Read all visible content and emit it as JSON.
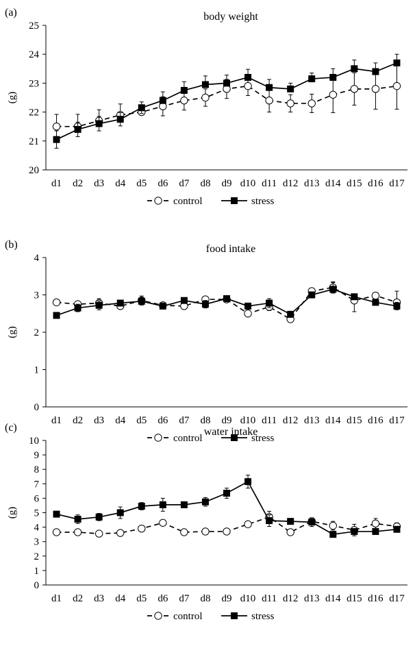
{
  "chart_data": [
    {
      "panel_label": "(a)",
      "type": "line",
      "title": "body weight",
      "ylabel": "(g)",
      "ylim": [
        20,
        25
      ],
      "yticks": [
        20,
        21,
        22,
        23,
        24,
        25
      ],
      "categories": [
        "d1",
        "d2",
        "d3",
        "d4",
        "d5",
        "d6",
        "d7",
        "d8",
        "d9",
        "d10",
        "d11",
        "d12",
        "d13",
        "d14",
        "d15",
        "d16",
        "d17"
      ],
      "legend": {
        "placement": "bottom-center",
        "entries": [
          "control",
          "stress"
        ]
      },
      "series": [
        {
          "name": "control",
          "marker": "open-circle",
          "line": "dashed",
          "values": [
            21.5,
            21.5,
            21.7,
            21.9,
            22.0,
            22.2,
            22.4,
            22.5,
            22.8,
            22.9,
            22.4,
            22.3,
            22.3,
            22.6,
            22.8,
            22.8,
            22.9
          ],
          "error_up": [
            0.42,
            0.42,
            0.38,
            0.38,
            0.12,
            0.33,
            0.33,
            0.3,
            0.33,
            0.38,
            0.4,
            0.3,
            0.32,
            0.62,
            0.56,
            0.7,
            0.8
          ],
          "error_down": [
            0,
            0,
            0,
            0,
            0.1,
            0.33,
            0.33,
            0.3,
            0.33,
            0.33,
            0.4,
            0.3,
            0.32,
            0.62,
            0.56,
            0.7,
            0.8
          ]
        },
        {
          "name": "stress",
          "marker": "filled-square",
          "line": "solid",
          "values": [
            21.05,
            21.4,
            21.6,
            21.75,
            22.15,
            22.4,
            22.75,
            22.95,
            23.0,
            23.2,
            22.85,
            22.8,
            23.15,
            23.2,
            23.5,
            23.4,
            23.7
          ],
          "error_up": [
            0.3,
            0.25,
            0.25,
            0.23,
            0.2,
            0.3,
            0.3,
            0.3,
            0.28,
            0.28,
            0.28,
            0.2,
            0.2,
            0.3,
            0.3,
            0.3,
            0.3
          ],
          "error_down": [
            0.3,
            0.25,
            0.25,
            0.23,
            0.2,
            0,
            0,
            0,
            0,
            0,
            0,
            0,
            0,
            0,
            0,
            0,
            0
          ]
        }
      ]
    },
    {
      "panel_label": "(b)",
      "type": "line",
      "title": "food intake",
      "ylabel": "(g)",
      "ylim": [
        0,
        4
      ],
      "yticks": [
        0,
        1,
        2,
        3,
        4
      ],
      "categories": [
        "d1",
        "d2",
        "d3",
        "d4",
        "d5",
        "d6",
        "d7",
        "d8",
        "d9",
        "d10",
        "d11",
        "d12",
        "d13",
        "d14",
        "d15",
        "d16",
        "d17"
      ],
      "legend": {
        "placement": "bottom-center",
        "entries": [
          "control",
          "stress"
        ]
      },
      "series": [
        {
          "name": "control",
          "marker": "open-circle",
          "line": "dashed",
          "values": [
            2.8,
            2.75,
            2.78,
            2.7,
            2.85,
            2.72,
            2.7,
            2.88,
            2.88,
            2.5,
            2.68,
            2.35,
            3.1,
            3.2,
            2.85,
            2.98,
            2.8
          ],
          "error_up": [
            0,
            0.05,
            0.12,
            0,
            0.12,
            0.05,
            0.05,
            0,
            0.05,
            0.08,
            0.1,
            0.05,
            0,
            0.15,
            0.15,
            0,
            0.3
          ],
          "error_down": [
            0,
            0.05,
            0.12,
            0,
            0.12,
            0.05,
            0.05,
            0,
            0.05,
            0.08,
            0.1,
            0.05,
            0,
            0.15,
            0.3,
            0,
            0.15
          ]
        },
        {
          "name": "stress",
          "marker": "filled-square",
          "line": "solid",
          "values": [
            2.45,
            2.65,
            2.72,
            2.78,
            2.83,
            2.7,
            2.85,
            2.75,
            2.9,
            2.7,
            2.78,
            2.48,
            3.0,
            3.15,
            2.95,
            2.8,
            2.7
          ],
          "error_up": [
            0,
            0.1,
            0.12,
            0.05,
            0.1,
            0.05,
            0.05,
            0.1,
            0.08,
            0.08,
            0.12,
            0.08,
            0.05,
            0.18,
            0.05,
            0.05,
            0.1
          ],
          "error_down": [
            0,
            0.1,
            0.12,
            0.05,
            0.1,
            0.05,
            0.05,
            0.1,
            0.08,
            0.08,
            0.12,
            0.08,
            0.05,
            0.1,
            0.05,
            0.05,
            0.1
          ]
        }
      ]
    },
    {
      "panel_label": "(c)",
      "type": "line",
      "title": "water intake",
      "ylabel": "(g)",
      "ylim": [
        0,
        10
      ],
      "yticks": [
        0,
        1,
        2,
        3,
        4,
        5,
        6,
        7,
        8,
        9,
        10
      ],
      "categories": [
        "d1",
        "d2",
        "d3",
        "d4",
        "d5",
        "d6",
        "d7",
        "d8",
        "d9",
        "d10",
        "d11",
        "d12",
        "d13",
        "d14",
        "d15",
        "d16",
        "d17"
      ],
      "legend": {
        "placement": "bottom-center",
        "entries": [
          "control",
          "stress"
        ]
      },
      "series": [
        {
          "name": "control",
          "marker": "open-circle",
          "line": "dashed",
          "values": [
            3.65,
            3.65,
            3.55,
            3.6,
            3.9,
            4.3,
            3.65,
            3.7,
            3.7,
            4.2,
            4.7,
            3.65,
            4.4,
            4.1,
            3.8,
            4.25,
            4.05
          ],
          "error_up": [
            0,
            0,
            0,
            0,
            0,
            0.05,
            0,
            0,
            0,
            0,
            0.4,
            0,
            0.2,
            0.3,
            0.4,
            0.35,
            0.25
          ],
          "error_down": [
            0,
            0,
            0,
            0,
            0,
            0,
            0,
            0,
            0,
            0,
            0.4,
            0,
            0.2,
            0.3,
            0.4,
            0.35,
            0.25
          ]
        },
        {
          "name": "stress",
          "marker": "filled-square",
          "line": "solid",
          "values": [
            4.9,
            4.55,
            4.7,
            5.0,
            5.45,
            5.55,
            5.55,
            5.75,
            6.35,
            7.15,
            4.45,
            4.4,
            4.35,
            3.5,
            3.7,
            3.7,
            3.85
          ],
          "error_up": [
            0,
            0.3,
            0.25,
            0.4,
            0.25,
            0.45,
            0.2,
            0.3,
            0.35,
            0.45,
            0.4,
            0.15,
            0.3,
            0.15,
            0.15,
            0.2,
            0.2
          ],
          "error_down": [
            0,
            0.3,
            0.25,
            0.4,
            0.25,
            0.45,
            0.2,
            0.3,
            0.35,
            0.45,
            0.4,
            0.15,
            0.3,
            0.15,
            0.15,
            0.2,
            0.2
          ]
        }
      ]
    }
  ]
}
